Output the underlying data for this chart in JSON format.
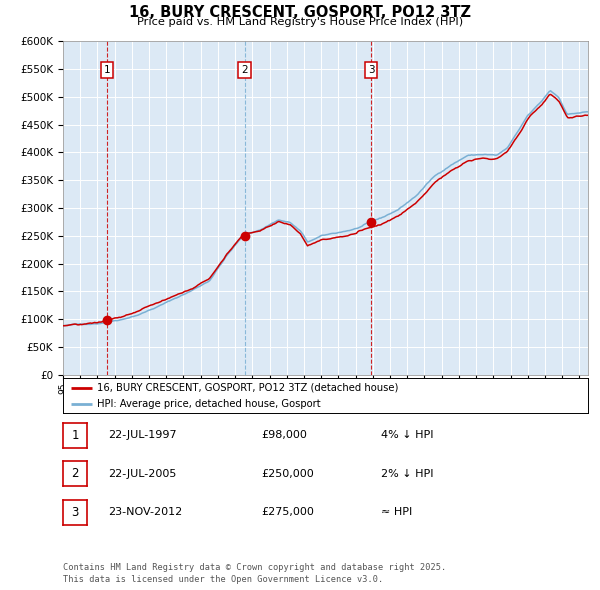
{
  "title": "16, BURY CRESCENT, GOSPORT, PO12 3TZ",
  "subtitle": "Price paid vs. HM Land Registry's House Price Index (HPI)",
  "background_color": "#dce9f5",
  "plot_bg_color": "#dce9f5",
  "hpi_line_color": "#7ab0d4",
  "price_line_color": "#cc0000",
  "dot_color": "#cc0000",
  "vline1_color": "#cc0000",
  "vline2_color": "#7ab0d4",
  "vline3_color": "#cc0000",
  "ylim": [
    0,
    600000
  ],
  "yticks": [
    0,
    50000,
    100000,
    150000,
    200000,
    250000,
    300000,
    350000,
    400000,
    450000,
    500000,
    550000,
    600000
  ],
  "sale1_date": 1997.55,
  "sale1_price": 98000,
  "sale2_date": 2005.55,
  "sale2_price": 250000,
  "sale3_date": 2012.9,
  "sale3_price": 275000,
  "legend_label1": "16, BURY CRESCENT, GOSPORT, PO12 3TZ (detached house)",
  "legend_label2": "HPI: Average price, detached house, Gosport",
  "table_rows": [
    {
      "num": "1",
      "date": "22-JUL-1997",
      "price": "£98,000",
      "rel": "4% ↓ HPI"
    },
    {
      "num": "2",
      "date": "22-JUL-2005",
      "price": "£250,000",
      "rel": "2% ↓ HPI"
    },
    {
      "num": "3",
      "date": "23-NOV-2012",
      "price": "£275,000",
      "rel": "≈ HPI"
    }
  ],
  "footnote": "Contains HM Land Registry data © Crown copyright and database right 2025.\nThis data is licensed under the Open Government Licence v3.0.",
  "xstart": 1995.0,
  "xend": 2025.5
}
